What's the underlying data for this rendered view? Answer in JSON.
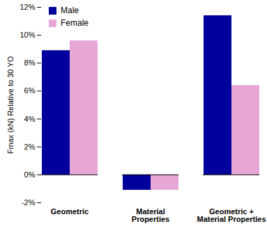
{
  "chart_data": {
    "type": "bar",
    "categories": [
      "Geometric",
      "Material\nProperties",
      "Geometric +\nMaterial Properties"
    ],
    "series": [
      {
        "name": "Male",
        "color": "#00009c",
        "values": [
          8.9,
          -1.1,
          11.4
        ]
      },
      {
        "name": "Female",
        "color": "#e6a6d6",
        "values": [
          9.6,
          -1.1,
          6.4
        ]
      }
    ],
    "y_label": "Fmax (kN) Relative to 30 YO",
    "ylim": [
      -2,
      12
    ],
    "yticks": [
      {
        "value": -2,
        "label": "-2%"
      },
      {
        "value": 0,
        "label": "0%"
      },
      {
        "value": 2,
        "label": "2%"
      },
      {
        "value": 4,
        "label": "4%"
      },
      {
        "value": 6,
        "label": "6%"
      },
      {
        "value": 8,
        "label": "8%"
      },
      {
        "value": 10,
        "label": "10%"
      },
      {
        "value": 12,
        "label": "12%"
      }
    ],
    "grid": false,
    "legend": "top-left"
  }
}
